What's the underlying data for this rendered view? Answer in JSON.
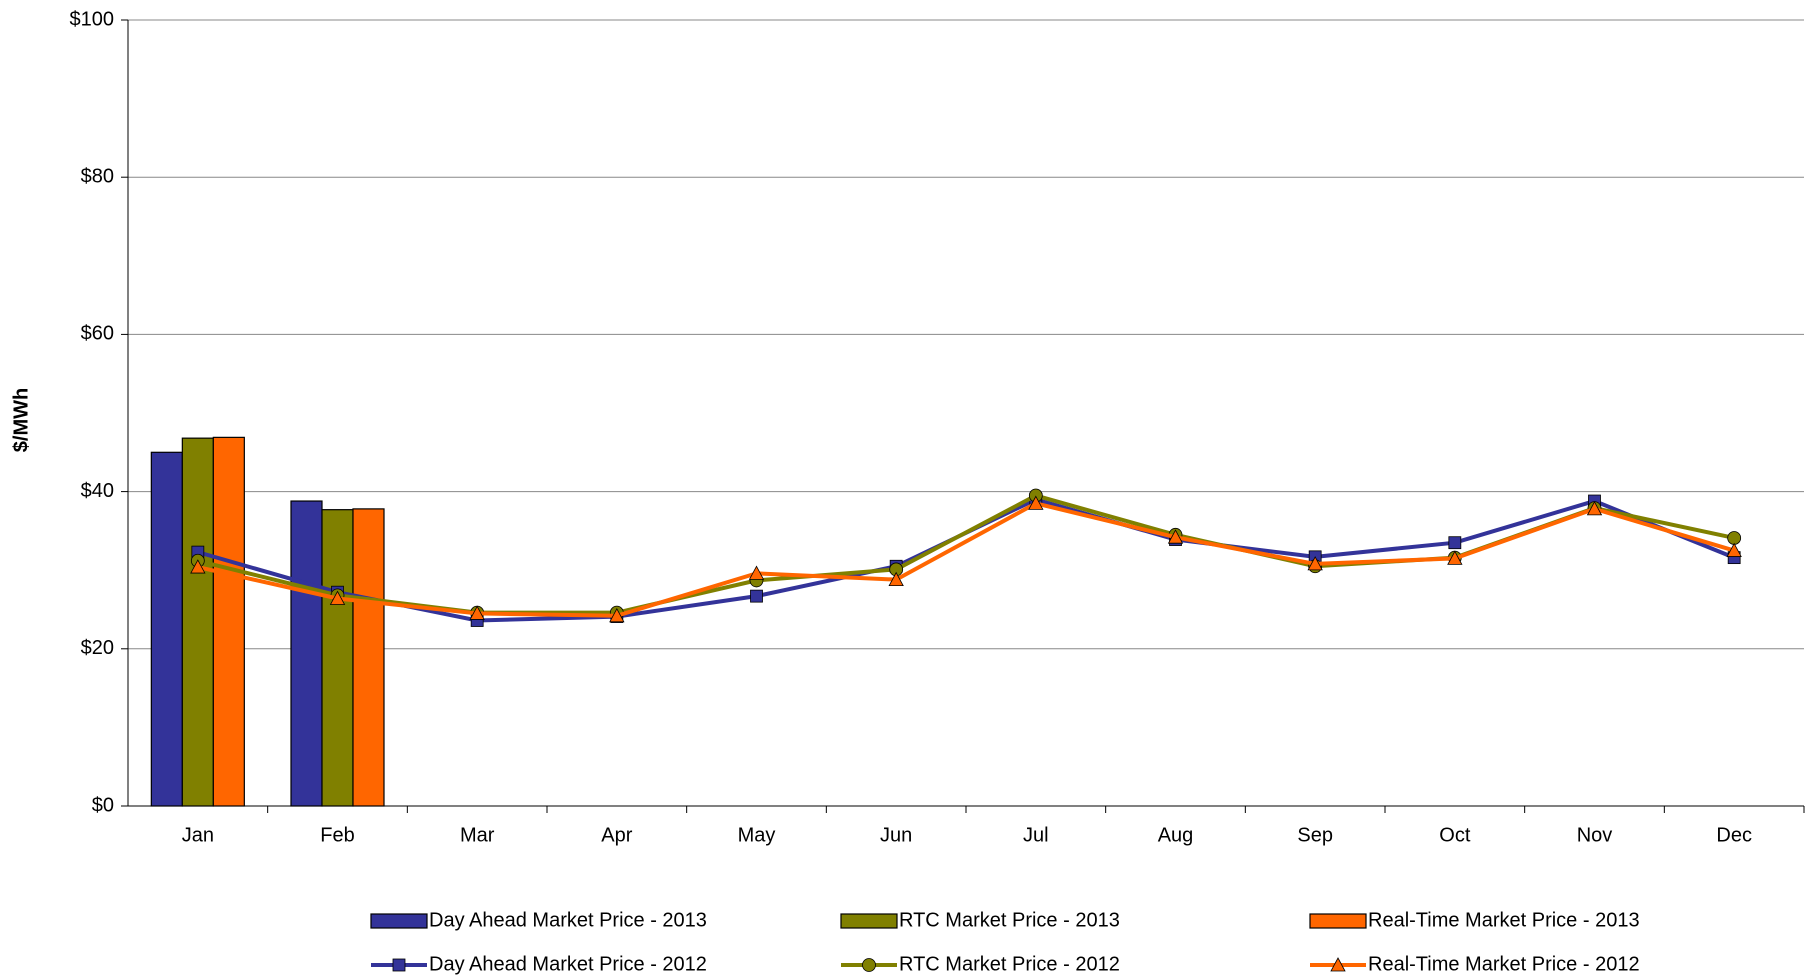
{
  "chart_data": {
    "type": "combo",
    "y_label": "$/MWh",
    "categories": [
      "Jan",
      "Feb",
      "Mar",
      "Apr",
      "May",
      "Jun",
      "Jul",
      "Aug",
      "Sep",
      "Oct",
      "Nov",
      "Dec"
    ],
    "ylim": [
      0,
      100
    ],
    "yticks": [
      {
        "value": 0,
        "label": "$0"
      },
      {
        "value": 20,
        "label": "$20"
      },
      {
        "value": 40,
        "label": "$40"
      },
      {
        "value": 60,
        "label": "$60"
      },
      {
        "value": 80,
        "label": "$80"
      },
      {
        "value": 100,
        "label": "$100"
      }
    ],
    "grid": true,
    "series": [
      {
        "name": "Day Ahead Market Price - 2013",
        "kind": "bar",
        "color": "#333399",
        "values": [
          45.0,
          38.8,
          null,
          null,
          null,
          null,
          null,
          null,
          null,
          null,
          null,
          null
        ]
      },
      {
        "name": "RTC Market Price - 2013",
        "kind": "bar",
        "color": "#808000",
        "values": [
          46.8,
          37.7,
          null,
          null,
          null,
          null,
          null,
          null,
          null,
          null,
          null,
          null
        ]
      },
      {
        "name": "Real-Time Market Price - 2013",
        "kind": "bar",
        "color": "#ff6600",
        "values": [
          46.9,
          37.8,
          null,
          null,
          null,
          null,
          null,
          null,
          null,
          null,
          null,
          null
        ]
      },
      {
        "name": "Day Ahead Market Price - 2012",
        "kind": "line",
        "marker": "square",
        "color": "#333399",
        "values": [
          32.3,
          27.2,
          23.6,
          24.1,
          26.7,
          30.5,
          39.0,
          33.9,
          31.7,
          33.5,
          38.8,
          31.6
        ]
      },
      {
        "name": "RTC Market Price - 2012",
        "kind": "line",
        "marker": "circle",
        "color": "#808000",
        "values": [
          31.2,
          26.8,
          24.6,
          24.6,
          28.7,
          30.1,
          39.5,
          34.5,
          30.5,
          31.6,
          37.9,
          34.1
        ]
      },
      {
        "name": "Real-Time Market Price - 2012",
        "kind": "line",
        "marker": "triangle",
        "color": "#ff6600",
        "values": [
          30.4,
          26.4,
          24.5,
          24.2,
          29.6,
          28.8,
          38.5,
          34.2,
          30.8,
          31.5,
          37.8,
          32.5
        ]
      }
    ]
  }
}
